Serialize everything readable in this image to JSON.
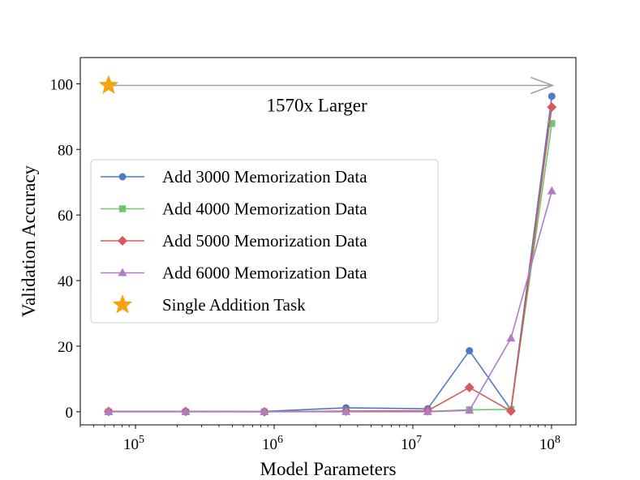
{
  "chart_data": {
    "type": "line",
    "title": "",
    "xlabel": "Model Parameters",
    "ylabel": "Validation Accuracy",
    "xscale": "log",
    "xlim": [
      40000,
      150000000
    ],
    "ylim": [
      -4,
      108
    ],
    "x_ticks": [
      {
        "value": 100000,
        "base": "10",
        "exp": "5"
      },
      {
        "value": 1000000,
        "base": "10",
        "exp": "6"
      },
      {
        "value": 10000000,
        "base": "10",
        "exp": "7"
      },
      {
        "value": 100000000,
        "base": "10",
        "exp": "8"
      }
    ],
    "y_ticks": [
      0,
      20,
      40,
      60,
      80,
      100
    ],
    "y_tick_labels": [
      "0",
      "20",
      "40",
      "60",
      "80",
      "100"
    ],
    "x": [
      64000,
      230000,
      850000,
      3300000,
      12800000,
      25600000,
      51000000,
      100500000
    ],
    "series": [
      {
        "name": "Add 3000 Memorization Data",
        "color": "#4f7ac7",
        "marker": "circle",
        "values": [
          0.1,
          0.1,
          0.1,
          1.2,
          0.9,
          18.6,
          0.6,
          96.2
        ]
      },
      {
        "name": "Add 4000 Memorization Data",
        "color": "#6cc76c",
        "marker": "square",
        "values": [
          0.0,
          0.0,
          0.0,
          0.1,
          0.1,
          0.6,
          0.7,
          87.9
        ]
      },
      {
        "name": "Add 5000 Memorization Data",
        "color": "#d45b5b",
        "marker": "diamond",
        "values": [
          0.1,
          0.1,
          0.0,
          0.2,
          0.3,
          7.4,
          0.2,
          92.9
        ]
      },
      {
        "name": "Add 6000 Memorization Data",
        "color": "#b07cc6",
        "marker": "triangle",
        "values": [
          0.0,
          0.0,
          0.0,
          0.0,
          0.0,
          0.4,
          22.4,
          67.3
        ]
      }
    ],
    "star": {
      "name": "Single Addition Task",
      "color": "#f6a312",
      "x": 64000,
      "y": 99.5
    },
    "arrow": {
      "from_x": 64000,
      "to_x": 100500000,
      "y": 99.5,
      "label": "1570x Larger",
      "color": "#a0a0a0"
    },
    "legend_position": "center-left"
  }
}
